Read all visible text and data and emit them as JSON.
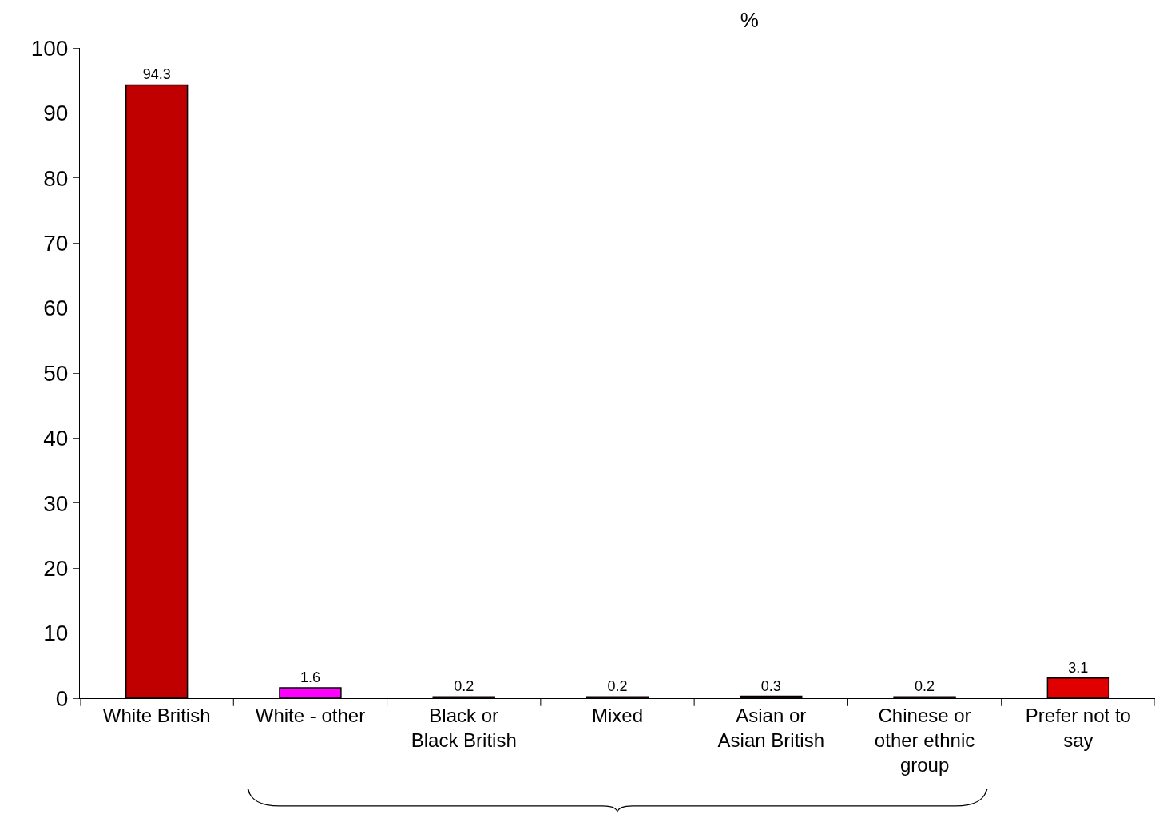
{
  "chart_data": {
    "type": "bar",
    "title": "%",
    "categories": [
      "White British",
      "White - other",
      "Black or\nBlack British",
      "Mixed",
      "Asian or\nAsian British",
      "Chinese or\nother ethnic\ngroup",
      "Prefer not to\nsay"
    ],
    "values": [
      94.3,
      1.6,
      0.2,
      0.2,
      0.3,
      0.2,
      3.1
    ],
    "colors": [
      "#c00000",
      "#ff00ff",
      "#800000",
      "#800000",
      "#800000",
      "#800000",
      "#e00000"
    ],
    "ylim": [
      0,
      100
    ],
    "yticks": [
      0,
      10,
      20,
      30,
      40,
      50,
      60,
      70,
      80,
      90,
      100
    ],
    "data_labels": true
  }
}
